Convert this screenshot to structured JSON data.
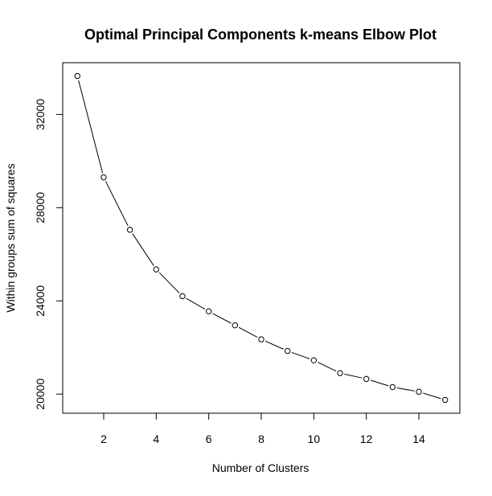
{
  "chart_data": {
    "type": "line",
    "title": "Optimal Principal Components k-means Elbow Plot",
    "xlabel": "Number of Clusters",
    "ylabel": "Within groups sum of squares",
    "x": [
      1,
      2,
      3,
      4,
      5,
      6,
      7,
      8,
      9,
      10,
      11,
      12,
      13,
      14,
      15
    ],
    "series": [
      {
        "values": [
          33650,
          29300,
          27050,
          25350,
          24200,
          23550,
          22950,
          22350,
          21850,
          21450,
          20900,
          20650,
          20300,
          20100,
          19750
        ]
      }
    ],
    "xticks": [
      2,
      4,
      6,
      8,
      10,
      12,
      14
    ],
    "yticks": [
      20000,
      24000,
      28000,
      32000
    ],
    "xlim": [
      0.44,
      15.56
    ],
    "ylim": [
      19180,
      34220
    ],
    "marker": "open-circle",
    "line_color": "#000000",
    "grid": false,
    "legend": "none"
  }
}
